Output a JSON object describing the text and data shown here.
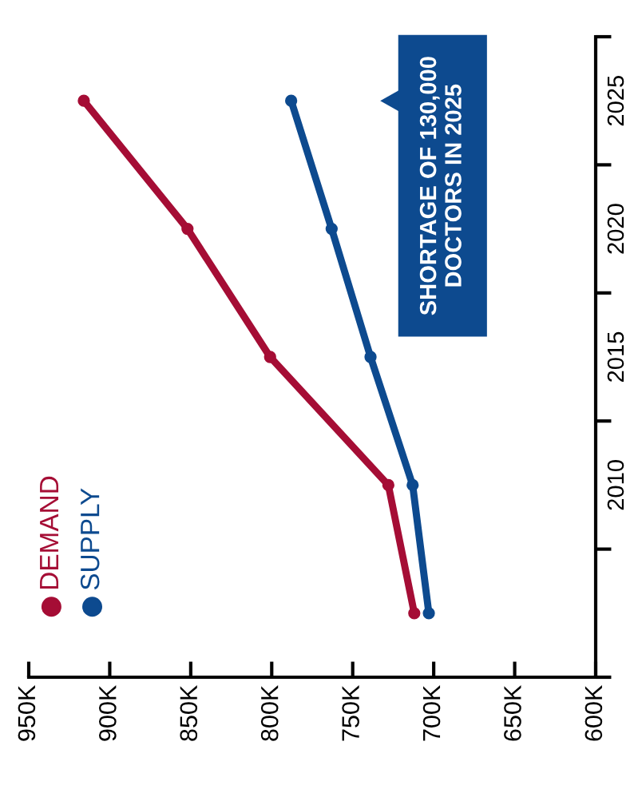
{
  "chart_data": {
    "type": "line",
    "orientation": "horizontal",
    "categories": [
      "2025",
      "2020",
      "2015",
      "2010",
      null
    ],
    "series": [
      {
        "name": "DEMAND",
        "color": "#a50d35",
        "values": [
          916000,
          852000,
          801000,
          728000,
          712000
        ]
      },
      {
        "name": "SUPPLY",
        "color": "#0d4a8f",
        "values": [
          788000,
          763000,
          739000,
          713000,
          703000
        ]
      }
    ],
    "xlim": [
      950000,
      600000
    ],
    "xticks": [
      {
        "value": 950000,
        "label": "950K"
      },
      {
        "value": 900000,
        "label": "900K"
      },
      {
        "value": 850000,
        "label": "850K"
      },
      {
        "value": 800000,
        "label": "800K"
      },
      {
        "value": 750000,
        "label": "750K"
      },
      {
        "value": 700000,
        "label": "700K"
      },
      {
        "value": 650000,
        "label": "650K"
      },
      {
        "value": 600000,
        "label": "600K"
      }
    ],
    "annotations": [
      "SHORTAGE OF 130,000\nDOCTORS IN 2025"
    ],
    "marker": "circle",
    "line_style": "solid",
    "grid": false,
    "legend": "bottom left"
  }
}
